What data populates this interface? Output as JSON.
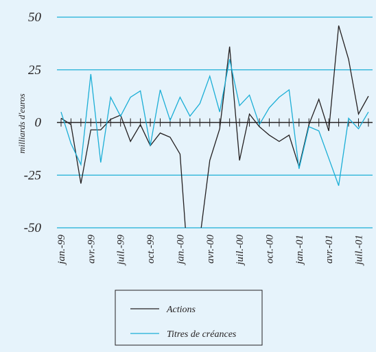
{
  "chart_data": {
    "type": "line",
    "y_label": "milliards d'euros",
    "categories": [
      "jan.-99",
      null,
      null,
      "avr.-99",
      null,
      null,
      "juil.-99",
      null,
      null,
      "oct.-99",
      null,
      null,
      "jan.-00",
      null,
      null,
      "avr.-00",
      null,
      null,
      "juil.-00",
      null,
      null,
      "oct.-00",
      null,
      null,
      "jan.-01",
      null,
      null,
      "avr.-01",
      null,
      null,
      "juil.-01",
      null
    ],
    "series": [
      {
        "name": "Actions",
        "color": "#231f20",
        "values": [
          2,
          -1,
          -29,
          -3.5,
          -3.5,
          1.5,
          3.5,
          -9,
          -1,
          -11,
          -5,
          -7,
          -15,
          -80,
          -55,
          -18,
          -3,
          36,
          -18,
          4,
          -2,
          -6,
          -9,
          -6,
          -21,
          -1,
          11,
          -4,
          46,
          30,
          4,
          12.5
        ]
      },
      {
        "name": "Titres de créances",
        "color": "#1aaed6",
        "values": [
          5,
          -10,
          -20,
          23,
          -19,
          12,
          3,
          12,
          15,
          -11,
          15.5,
          1,
          12,
          3,
          9,
          22,
          5,
          30,
          8,
          13,
          -1,
          7,
          12,
          15.5,
          -22,
          -2,
          -4,
          -17,
          -30,
          2,
          -3,
          5
        ]
      }
    ],
    "ylim": [
      -50,
      50
    ],
    "yticks": [
      -50,
      -25,
      0,
      25,
      50
    ],
    "grid": true,
    "grid_color": "#1aaed6",
    "legend": "bottom"
  }
}
